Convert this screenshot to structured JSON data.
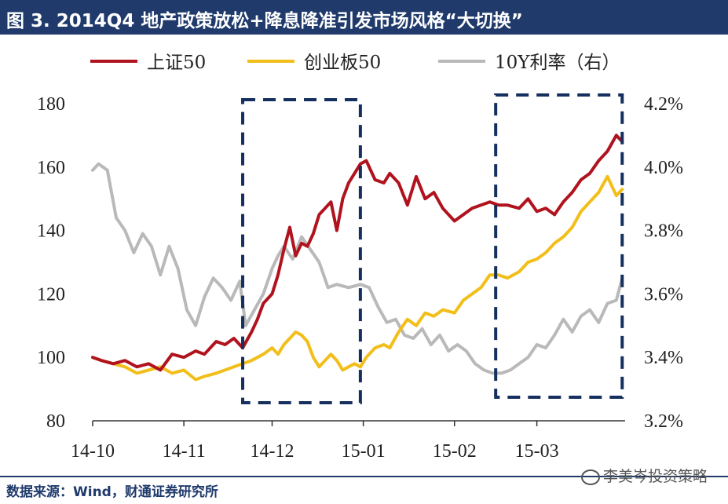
{
  "header": {
    "title": "图 3. 2014Q4 地产政策放松+降息降准引发市场风格“大切换”"
  },
  "footer": {
    "source": "数据来源：Wind，财通证券研究所",
    "watermark": "李美岑投资策略"
  },
  "colors": {
    "title_bg": "#1f3a6b",
    "sz50": "#b0131e",
    "cyb50": "#f2be1a",
    "y10": "#b9b9b9",
    "box": "#15305e"
  },
  "chart_data": {
    "type": "line",
    "title": "",
    "x_ticks": [
      "14-10",
      "14-11",
      "14-12",
      "15-01",
      "15-02",
      "15-03"
    ],
    "y_left": {
      "ticks": [
        "180",
        "160",
        "140",
        "120",
        "100",
        "80"
      ],
      "range": [
        80,
        180
      ]
    },
    "y_right": {
      "ticks": [
        "4.2%",
        "4.0%",
        "3.8%",
        "3.6%",
        "3.4%",
        "3.2%"
      ],
      "range": [
        3.2,
        4.2
      ]
    },
    "x_range": [
      "2014-10-01",
      "2015-03-31"
    ],
    "legend": [
      "上证50",
      "创业板50",
      "10Y利率（右）"
    ],
    "legend_position": "top",
    "highlight_boxes": [
      {
        "x_from": "2014-11-21",
        "x_to": "2014-12-31"
      },
      {
        "x_from": "2015-02-15",
        "x_to": "2015-03-30"
      }
    ],
    "series": [
      {
        "name": "上证50",
        "axis": "left",
        "points": [
          [
            "2014-10-01",
            100
          ],
          [
            "2014-10-04",
            99
          ],
          [
            "2014-10-08",
            98
          ],
          [
            "2014-10-12",
            99
          ],
          [
            "2014-10-16",
            97
          ],
          [
            "2014-10-20",
            98
          ],
          [
            "2014-10-24",
            96
          ],
          [
            "2014-10-28",
            101
          ],
          [
            "2014-11-01",
            100
          ],
          [
            "2014-11-05",
            102
          ],
          [
            "2014-11-08",
            101
          ],
          [
            "2014-11-12",
            105
          ],
          [
            "2014-11-15",
            104
          ],
          [
            "2014-11-18",
            106
          ],
          [
            "2014-11-21",
            103
          ],
          [
            "2014-11-24",
            108
          ],
          [
            "2014-11-26",
            112
          ],
          [
            "2014-11-28",
            117
          ],
          [
            "2014-12-01",
            120
          ],
          [
            "2014-12-03",
            126
          ],
          [
            "2014-12-05",
            134
          ],
          [
            "2014-12-07",
            141
          ],
          [
            "2014-12-09",
            132
          ],
          [
            "2014-12-11",
            136
          ],
          [
            "2014-12-13",
            135
          ],
          [
            "2014-12-15",
            139
          ],
          [
            "2014-12-17",
            145
          ],
          [
            "2014-12-19",
            147
          ],
          [
            "2014-12-21",
            149
          ],
          [
            "2014-12-23",
            140
          ],
          [
            "2014-12-25",
            150
          ],
          [
            "2014-12-27",
            155
          ],
          [
            "2014-12-29",
            158
          ],
          [
            "2014-12-31",
            161
          ],
          [
            "2015-01-02",
            162
          ],
          [
            "2015-01-05",
            156
          ],
          [
            "2015-01-08",
            155
          ],
          [
            "2015-01-10",
            158
          ],
          [
            "2015-01-13",
            155
          ],
          [
            "2015-01-16",
            148
          ],
          [
            "2015-01-19",
            157
          ],
          [
            "2015-01-22",
            150
          ],
          [
            "2015-01-25",
            152
          ],
          [
            "2015-01-28",
            147
          ],
          [
            "2015-02-01",
            143
          ],
          [
            "2015-02-04",
            145
          ],
          [
            "2015-02-07",
            147
          ],
          [
            "2015-02-10",
            148
          ],
          [
            "2015-02-13",
            149
          ],
          [
            "2015-02-16",
            148
          ],
          [
            "2015-02-19",
            148
          ],
          [
            "2015-02-23",
            147
          ],
          [
            "2015-02-26",
            150
          ],
          [
            "2015-03-01",
            146
          ],
          [
            "2015-03-04",
            147
          ],
          [
            "2015-03-07",
            145
          ],
          [
            "2015-03-10",
            149
          ],
          [
            "2015-03-13",
            152
          ],
          [
            "2015-03-16",
            156
          ],
          [
            "2015-03-19",
            158
          ],
          [
            "2015-03-22",
            162
          ],
          [
            "2015-03-25",
            165
          ],
          [
            "2015-03-28",
            170
          ],
          [
            "2015-03-30",
            168
          ]
        ]
      },
      {
        "name": "创业板50",
        "axis": "left",
        "points": [
          [
            "2014-10-01",
            100
          ],
          [
            "2014-10-04",
            99
          ],
          [
            "2014-10-08",
            98
          ],
          [
            "2014-10-12",
            97
          ],
          [
            "2014-10-16",
            95
          ],
          [
            "2014-10-20",
            96
          ],
          [
            "2014-10-24",
            97
          ],
          [
            "2014-10-28",
            95
          ],
          [
            "2014-11-01",
            96
          ],
          [
            "2014-11-05",
            93
          ],
          [
            "2014-11-08",
            94
          ],
          [
            "2014-11-12",
            95
          ],
          [
            "2014-11-15",
            96
          ],
          [
            "2014-11-18",
            97
          ],
          [
            "2014-11-21",
            98
          ],
          [
            "2014-11-24",
            99
          ],
          [
            "2014-11-26",
            100
          ],
          [
            "2014-11-28",
            101
          ],
          [
            "2014-12-01",
            103
          ],
          [
            "2014-12-03",
            101
          ],
          [
            "2014-12-05",
            104
          ],
          [
            "2014-12-07",
            106
          ],
          [
            "2014-12-09",
            108
          ],
          [
            "2014-12-11",
            107
          ],
          [
            "2014-12-13",
            105
          ],
          [
            "2014-12-15",
            100
          ],
          [
            "2014-12-17",
            97
          ],
          [
            "2014-12-19",
            99
          ],
          [
            "2014-12-21",
            101
          ],
          [
            "2014-12-23",
            99
          ],
          [
            "2014-12-25",
            96
          ],
          [
            "2014-12-27",
            97
          ],
          [
            "2014-12-29",
            98
          ],
          [
            "2014-12-31",
            97
          ],
          [
            "2015-01-02",
            100
          ],
          [
            "2015-01-05",
            103
          ],
          [
            "2015-01-08",
            104
          ],
          [
            "2015-01-10",
            103
          ],
          [
            "2015-01-13",
            108
          ],
          [
            "2015-01-16",
            112
          ],
          [
            "2015-01-19",
            110
          ],
          [
            "2015-01-22",
            114
          ],
          [
            "2015-01-25",
            113
          ],
          [
            "2015-01-28",
            115
          ],
          [
            "2015-02-01",
            114
          ],
          [
            "2015-02-04",
            118
          ],
          [
            "2015-02-07",
            120
          ],
          [
            "2015-02-10",
            122
          ],
          [
            "2015-02-13",
            126
          ],
          [
            "2015-02-16",
            126
          ],
          [
            "2015-02-19",
            125
          ],
          [
            "2015-02-23",
            127
          ],
          [
            "2015-02-26",
            130
          ],
          [
            "2015-03-01",
            131
          ],
          [
            "2015-03-04",
            133
          ],
          [
            "2015-03-07",
            136
          ],
          [
            "2015-03-10",
            138
          ],
          [
            "2015-03-13",
            141
          ],
          [
            "2015-03-16",
            146
          ],
          [
            "2015-03-19",
            149
          ],
          [
            "2015-03-22",
            152
          ],
          [
            "2015-03-25",
            157
          ],
          [
            "2015-03-28",
            151
          ],
          [
            "2015-03-30",
            153
          ]
        ]
      },
      {
        "name": "10Y利率（右）",
        "axis": "right",
        "points": [
          [
            "2014-10-01",
            3.99
          ],
          [
            "2014-10-03",
            4.01
          ],
          [
            "2014-10-06",
            3.99
          ],
          [
            "2014-10-09",
            3.84
          ],
          [
            "2014-10-12",
            3.8
          ],
          [
            "2014-10-15",
            3.73
          ],
          [
            "2014-10-18",
            3.79
          ],
          [
            "2014-10-21",
            3.75
          ],
          [
            "2014-10-24",
            3.66
          ],
          [
            "2014-10-27",
            3.75
          ],
          [
            "2014-10-30",
            3.68
          ],
          [
            "2014-11-02",
            3.55
          ],
          [
            "2014-11-05",
            3.5
          ],
          [
            "2014-11-08",
            3.59
          ],
          [
            "2014-11-11",
            3.65
          ],
          [
            "2014-11-14",
            3.62
          ],
          [
            "2014-11-17",
            3.58
          ],
          [
            "2014-11-20",
            3.64
          ],
          [
            "2014-11-22",
            3.5
          ],
          [
            "2014-11-25",
            3.55
          ],
          [
            "2014-11-28",
            3.6
          ],
          [
            "2014-12-01",
            3.68
          ],
          [
            "2014-12-03",
            3.72
          ],
          [
            "2014-12-05",
            3.75
          ],
          [
            "2014-12-08",
            3.71
          ],
          [
            "2014-12-11",
            3.78
          ],
          [
            "2014-12-14",
            3.74
          ],
          [
            "2014-12-17",
            3.7
          ],
          [
            "2014-12-20",
            3.62
          ],
          [
            "2014-12-23",
            3.63
          ],
          [
            "2014-12-27",
            3.62
          ],
          [
            "2014-12-31",
            3.63
          ],
          [
            "2015-01-03",
            3.62
          ],
          [
            "2015-01-06",
            3.56
          ],
          [
            "2015-01-09",
            3.51
          ],
          [
            "2015-01-12",
            3.52
          ],
          [
            "2015-01-15",
            3.47
          ],
          [
            "2015-01-18",
            3.46
          ],
          [
            "2015-01-21",
            3.49
          ],
          [
            "2015-01-24",
            3.44
          ],
          [
            "2015-01-27",
            3.47
          ],
          [
            "2015-01-30",
            3.42
          ],
          [
            "2015-02-02",
            3.44
          ],
          [
            "2015-02-05",
            3.42
          ],
          [
            "2015-02-08",
            3.38
          ],
          [
            "2015-02-11",
            3.36
          ],
          [
            "2015-02-14",
            3.35
          ],
          [
            "2015-02-17",
            3.35
          ],
          [
            "2015-02-20",
            3.36
          ],
          [
            "2015-02-23",
            3.38
          ],
          [
            "2015-02-26",
            3.4
          ],
          [
            "2015-03-01",
            3.44
          ],
          [
            "2015-03-04",
            3.43
          ],
          [
            "2015-03-07",
            3.47
          ],
          [
            "2015-03-10",
            3.52
          ],
          [
            "2015-03-13",
            3.48
          ],
          [
            "2015-03-16",
            3.53
          ],
          [
            "2015-03-19",
            3.55
          ],
          [
            "2015-03-22",
            3.51
          ],
          [
            "2015-03-25",
            3.57
          ],
          [
            "2015-03-28",
            3.58
          ],
          [
            "2015-03-30",
            3.65
          ]
        ]
      }
    ]
  }
}
